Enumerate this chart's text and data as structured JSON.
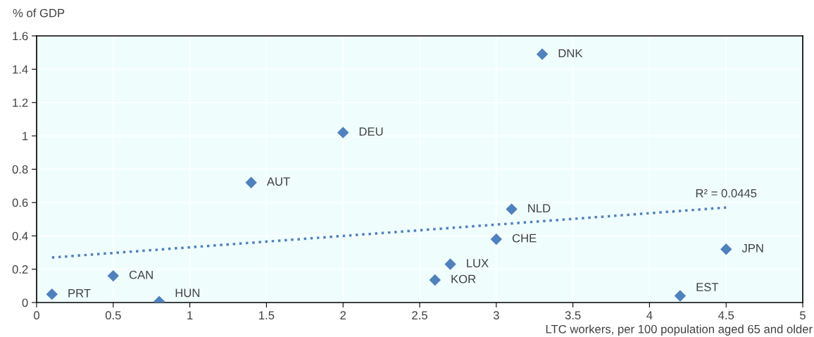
{
  "chart_data": {
    "type": "scatter",
    "xlabel": "LTC workers, per 100 population aged 65 and older",
    "ylabel": "% of GDP",
    "xlim": [
      0,
      5
    ],
    "xticks": [
      0,
      0.5,
      1,
      1.5,
      2,
      2.5,
      3,
      3.5,
      4,
      4.5,
      5
    ],
    "ylim": [
      0,
      1.6
    ],
    "yticks": [
      0,
      0.2,
      0.4,
      0.6,
      0.8,
      1,
      1.2,
      1.4,
      1.6
    ],
    "grid": true,
    "legend": false,
    "series": [
      {
        "color": "#4f81bd",
        "marker": "diamond",
        "x": [
          0.1,
          0.5,
          0.8,
          1.4,
          2.0,
          3.3,
          3.1,
          3.0,
          2.7,
          2.6,
          4.5,
          4.2
        ],
        "values": [
          0.05,
          0.16,
          0.005,
          0.72,
          1.02,
          1.49,
          0.56,
          0.38,
          0.23,
          0.135,
          0.32,
          0.04
        ]
      },
      {
        "type": "line",
        "color": "#4f81bd",
        "marker": "none",
        "line_style": "dotted",
        "x": [
          0.1,
          4.5
        ],
        "values": [
          0.27,
          0.57
        ]
      }
    ],
    "annotations": [
      {
        "text": "PRT",
        "x": 0.1,
        "y": 0.05
      },
      {
        "text": "CAN",
        "x": 0.5,
        "y": 0.16
      },
      {
        "text": "HUN",
        "x": 0.8,
        "y": 0.005
      },
      {
        "text": "AUT",
        "x": 1.4,
        "y": 0.72
      },
      {
        "text": "DEU",
        "x": 2.0,
        "y": 1.02
      },
      {
        "text": "DNK",
        "x": 3.3,
        "y": 1.49
      },
      {
        "text": "NLD",
        "x": 3.1,
        "y": 0.56
      },
      {
        "text": "CHE",
        "x": 3.0,
        "y": 0.38
      },
      {
        "text": "LUX",
        "x": 2.7,
        "y": 0.23
      },
      {
        "text": "KOR",
        "x": 2.6,
        "y": 0.135
      },
      {
        "text": "JPN",
        "x": 4.5,
        "y": 0.32
      },
      {
        "text": "EST",
        "x": 4.2,
        "y": 0.04
      },
      {
        "text": "R² = 0.0445",
        "x": 4.5,
        "y": 0.57
      }
    ]
  }
}
